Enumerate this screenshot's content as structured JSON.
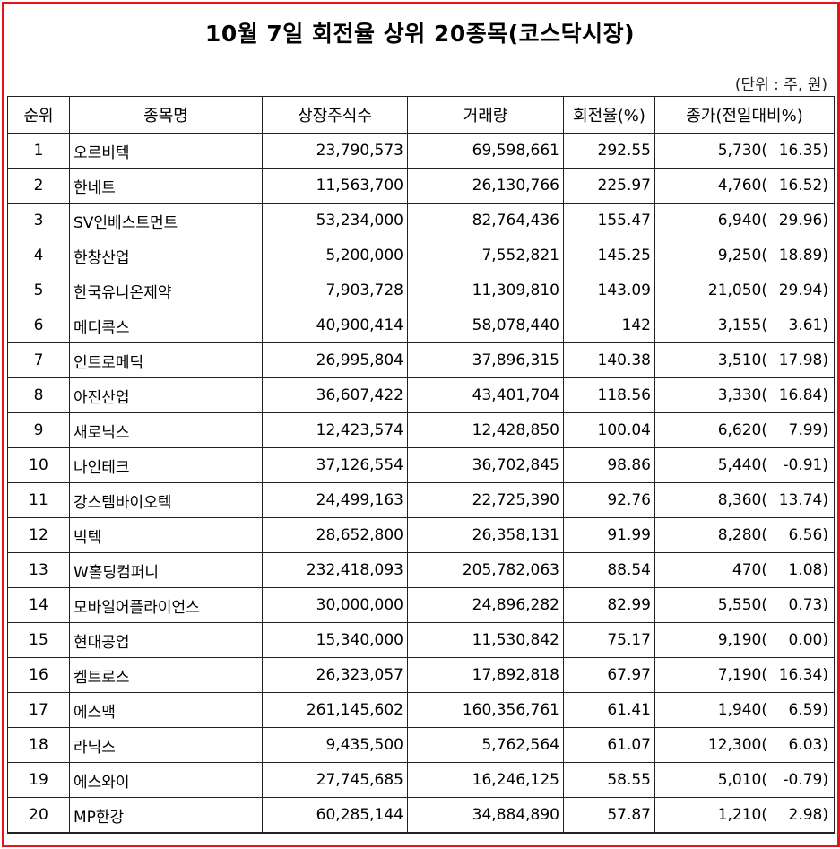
{
  "title": "10월 7일 회전율 상위 20종목(코스닥시장)",
  "unit_note": "(단위 : 주, 원)",
  "columns": [
    "순위",
    "종목명",
    "상장주식수",
    "거래량",
    "회전율(%)",
    "종가(전일대비%)"
  ],
  "rows": [
    {
      "rank": "1",
      "name": "오르비텍",
      "listed": "23,790,573",
      "volume": "69,598,661",
      "turnover": "292.55",
      "close": "5,730(",
      "change": "16.35)"
    },
    {
      "rank": "2",
      "name": "한네트",
      "listed": "11,563,700",
      "volume": "26,130,766",
      "turnover": "225.97",
      "close": "4,760(",
      "change": "16.52)"
    },
    {
      "rank": "3",
      "name": "SV인베스트먼트",
      "listed": "53,234,000",
      "volume": "82,764,436",
      "turnover": "155.47",
      "close": "6,940(",
      "change": "29.96)"
    },
    {
      "rank": "4",
      "name": "한창산업",
      "listed": "5,200,000",
      "volume": "7,552,821",
      "turnover": "145.25",
      "close": "9,250(",
      "change": "18.89)"
    },
    {
      "rank": "5",
      "name": "한국유니온제약",
      "listed": "7,903,728",
      "volume": "11,309,810",
      "turnover": "143.09",
      "close": "21,050(",
      "change": "29.94)"
    },
    {
      "rank": "6",
      "name": "메디콕스",
      "listed": "40,900,414",
      "volume": "58,078,440",
      "turnover": "142",
      "close": "3,155(",
      "change": "3.61)"
    },
    {
      "rank": "7",
      "name": "인트로메딕",
      "listed": "26,995,804",
      "volume": "37,896,315",
      "turnover": "140.38",
      "close": "3,510(",
      "change": "17.98)"
    },
    {
      "rank": "8",
      "name": "아진산업",
      "listed": "36,607,422",
      "volume": "43,401,704",
      "turnover": "118.56",
      "close": "3,330(",
      "change": "16.84)"
    },
    {
      "rank": "9",
      "name": "새로닉스",
      "listed": "12,423,574",
      "volume": "12,428,850",
      "turnover": "100.04",
      "close": "6,620(",
      "change": "7.99)"
    },
    {
      "rank": "10",
      "name": "나인테크",
      "listed": "37,126,554",
      "volume": "36,702,845",
      "turnover": "98.86",
      "close": "5,440(",
      "change": "-0.91)"
    },
    {
      "rank": "11",
      "name": "강스템바이오텍",
      "listed": "24,499,163",
      "volume": "22,725,390",
      "turnover": "92.76",
      "close": "8,360(",
      "change": "13.74)"
    },
    {
      "rank": "12",
      "name": "빅텍",
      "listed": "28,652,800",
      "volume": "26,358,131",
      "turnover": "91.99",
      "close": "8,280(",
      "change": "6.56)"
    },
    {
      "rank": "13",
      "name": "W홀딩컴퍼니",
      "listed": "232,418,093",
      "volume": "205,782,063",
      "turnover": "88.54",
      "close": "470(",
      "change": "1.08)"
    },
    {
      "rank": "14",
      "name": "모바일어플라이언스",
      "listed": "30,000,000",
      "volume": "24,896,282",
      "turnover": "82.99",
      "close": "5,550(",
      "change": "0.73)"
    },
    {
      "rank": "15",
      "name": "현대공업",
      "listed": "15,340,000",
      "volume": "11,530,842",
      "turnover": "75.17",
      "close": "9,190(",
      "change": "0.00)"
    },
    {
      "rank": "16",
      "name": "켐트로스",
      "listed": "26,323,057",
      "volume": "17,892,818",
      "turnover": "67.97",
      "close": "7,190(",
      "change": "16.34)"
    },
    {
      "rank": "17",
      "name": "에스맥",
      "listed": "261,145,602",
      "volume": "160,356,761",
      "turnover": "61.41",
      "close": "1,940(",
      "change": "6.59)"
    },
    {
      "rank": "18",
      "name": "라닉스",
      "listed": "9,435,500",
      "volume": "5,762,564",
      "turnover": "61.07",
      "close": "12,300(",
      "change": "6.03)"
    },
    {
      "rank": "19",
      "name": "에스와이",
      "listed": "27,745,685",
      "volume": "16,246,125",
      "turnover": "58.55",
      "close": "5,010(",
      "change": "-0.79)"
    },
    {
      "rank": "20",
      "name": "MP한강",
      "listed": "60,285,144",
      "volume": "34,884,890",
      "turnover": "57.87",
      "close": "1,210(",
      "change": "2.98)"
    }
  ],
  "colors": {
    "frame": "#e8141b",
    "grid": "#222222"
  }
}
